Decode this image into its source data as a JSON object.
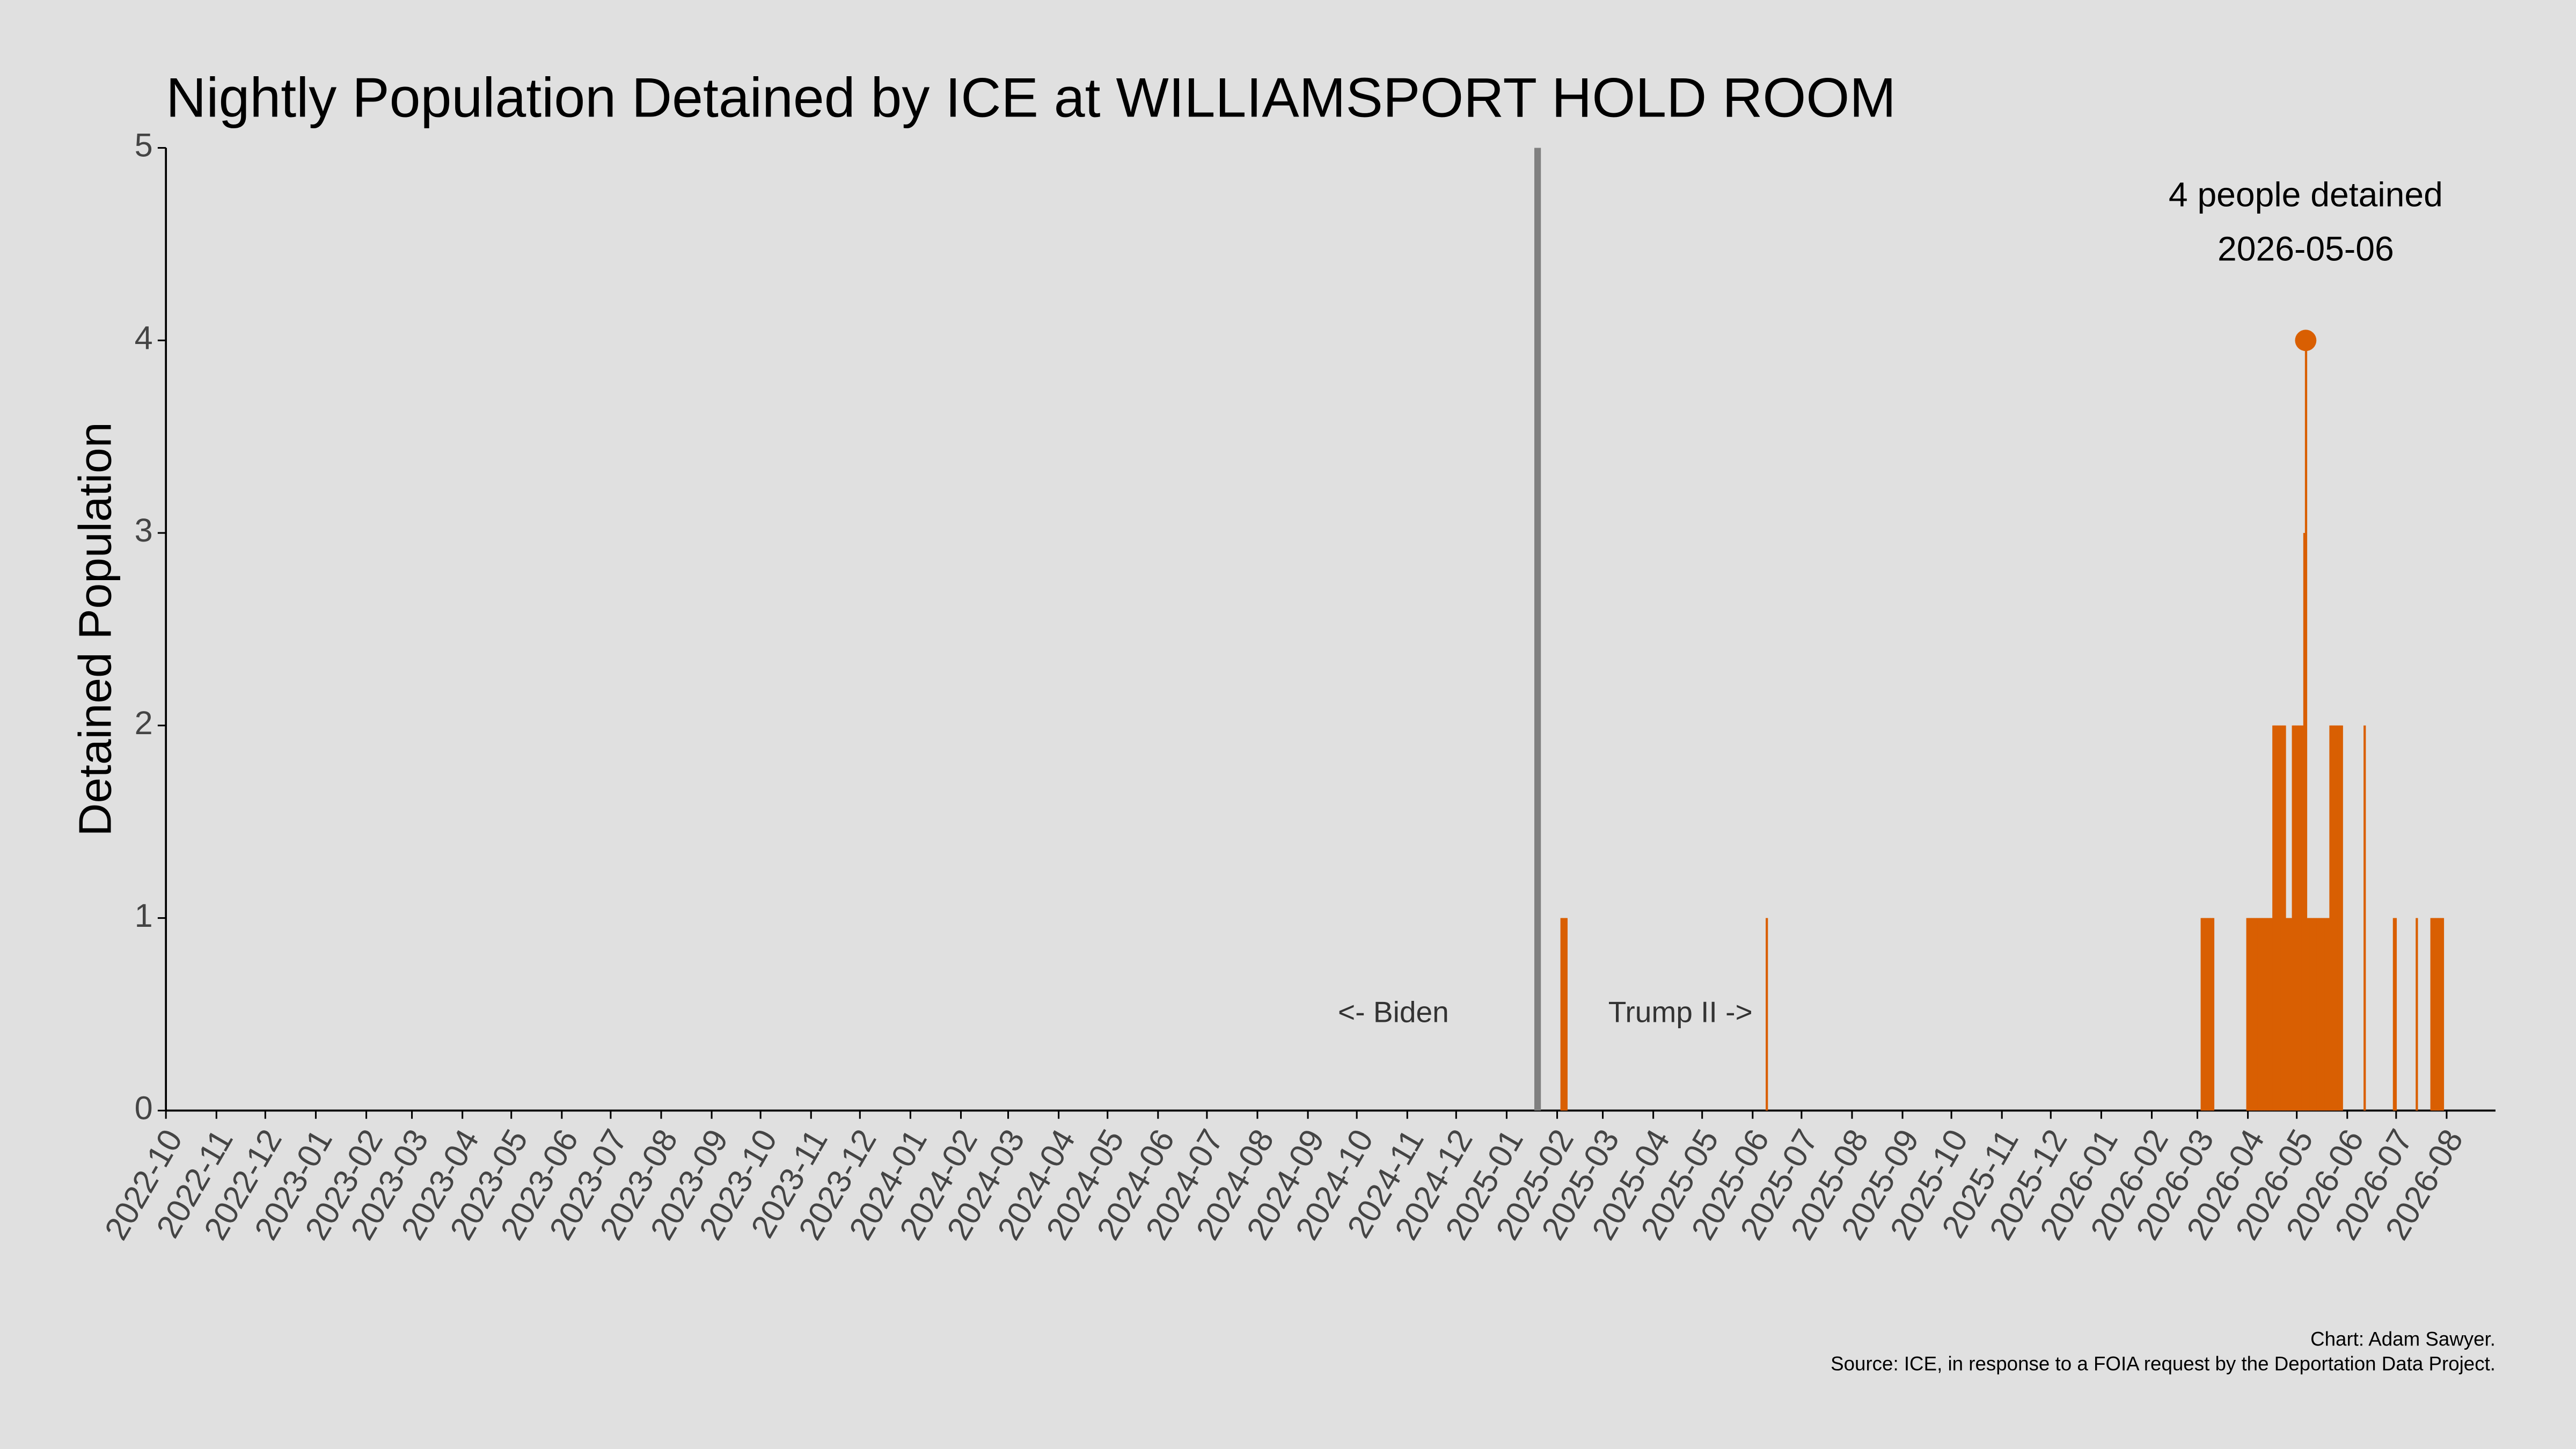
{
  "chart_data": {
    "type": "bar",
    "title": "Nightly Population Detained by ICE at WILLIAMSPORT HOLD ROOM",
    "y_label": "Detained Population",
    "annotation": {
      "label": "4 people detained",
      "date": "2026-05-06"
    },
    "era_labels": {
      "before": "<- Biden",
      "after": "Trump II ->",
      "date": "2025-01-20"
    },
    "caption": [
      "Chart: Adam Sawyer.",
      "Source: ICE, in response to a FOIA request by the Deportation Data Project."
    ],
    "color": "#d95f02",
    "event_line_color": "#808080",
    "xlim": [
      "2022-10-01",
      "2026-08-31"
    ],
    "xticks": [
      "2022-10",
      "2022-11",
      "2022-12",
      "2023-01",
      "2023-02",
      "2023-03",
      "2023-04",
      "2023-05",
      "2023-06",
      "2023-07",
      "2023-08",
      "2023-09",
      "2023-10",
      "2023-11",
      "2023-12",
      "2024-01",
      "2024-02",
      "2024-03",
      "2024-04",
      "2024-05",
      "2024-06",
      "2024-07",
      "2024-08",
      "2024-09",
      "2024-10",
      "2024-11",
      "2024-12",
      "2025-01",
      "2025-02",
      "2025-03",
      "2025-04",
      "2025-05",
      "2025-06",
      "2025-07",
      "2025-08",
      "2025-09",
      "2025-10",
      "2025-11",
      "2025-12",
      "2026-01",
      "2026-02",
      "2026-03",
      "2026-04",
      "2026-05",
      "2026-06",
      "2026-07",
      "2026-08"
    ],
    "ylim": [
      0,
      5
    ],
    "yticks": [
      0,
      1,
      2,
      3,
      4,
      5
    ],
    "x": [
      "2025-02-03",
      "2025-02-04",
      "2025-02-05",
      "2025-02-06",
      "2025-06-09",
      "2026-03-03",
      "2026-03-04",
      "2026-03-05",
      "2026-03-06",
      "2026-03-07",
      "2026-03-08",
      "2026-03-09",
      "2026-03-10",
      "2026-03-31",
      "2026-04-01",
      "2026-04-02",
      "2026-04-03",
      "2026-04-04",
      "2026-04-05",
      "2026-04-06",
      "2026-04-07",
      "2026-04-08",
      "2026-04-09",
      "2026-04-10",
      "2026-04-11",
      "2026-04-12",
      "2026-04-13",
      "2026-04-14",
      "2026-04-15",
      "2026-04-16",
      "2026-04-17",
      "2026-04-18",
      "2026-04-19",
      "2026-04-20",
      "2026-04-21",
      "2026-04-22",
      "2026-04-23",
      "2026-04-24",
      "2026-04-25",
      "2026-04-26",
      "2026-04-27",
      "2026-04-28",
      "2026-04-29",
      "2026-04-30",
      "2026-05-01",
      "2026-05-02",
      "2026-05-03",
      "2026-05-04",
      "2026-05-05",
      "2026-05-06",
      "2026-05-07",
      "2026-05-08",
      "2026-05-09",
      "2026-05-10",
      "2026-05-11",
      "2026-05-12",
      "2026-05-13",
      "2026-05-14",
      "2026-05-15",
      "2026-05-16",
      "2026-05-17",
      "2026-05-18",
      "2026-05-19",
      "2026-05-20",
      "2026-05-21",
      "2026-05-22",
      "2026-05-23",
      "2026-05-24",
      "2026-05-25",
      "2026-05-26",
      "2026-05-27",
      "2026-05-28",
      "2026-06-11",
      "2026-06-29",
      "2026-06-30",
      "2026-07-13",
      "2026-07-22",
      "2026-07-23",
      "2026-07-24",
      "2026-07-25",
      "2026-07-26",
      "2026-07-27",
      "2026-07-28",
      "2026-07-29"
    ],
    "values": [
      1,
      1,
      1,
      1,
      1,
      1,
      1,
      1,
      1,
      1,
      1,
      1,
      1,
      1,
      1,
      1,
      1,
      1,
      1,
      1,
      1,
      1,
      1,
      1,
      1,
      1,
      1,
      1,
      1,
      2,
      2,
      2,
      2,
      2,
      2,
      2,
      2,
      1,
      1,
      1,
      1,
      2,
      2,
      2,
      2,
      2,
      2,
      2,
      3,
      4,
      1,
      1,
      1,
      1,
      1,
      1,
      1,
      1,
      1,
      1,
      1,
      1,
      1,
      1,
      2,
      2,
      2,
      2,
      2,
      2,
      2,
      2,
      2,
      1,
      1,
      1,
      1,
      1,
      1,
      1,
      1,
      1,
      1,
      1
    ]
  }
}
